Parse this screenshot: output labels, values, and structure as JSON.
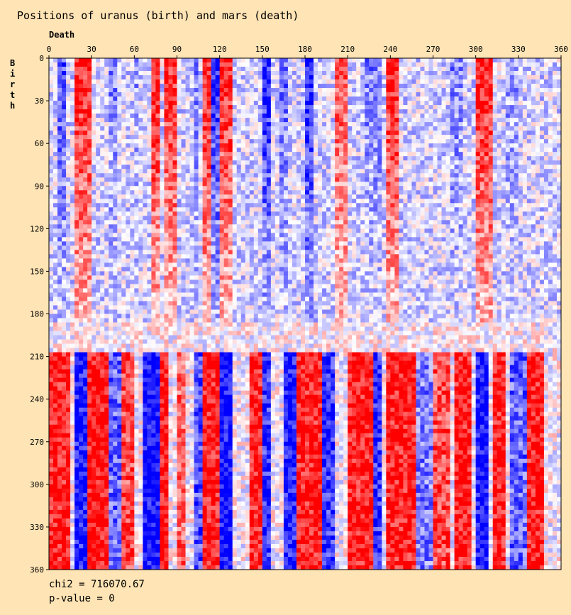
{
  "chart_data": {
    "type": "heatmap",
    "title": "Positions of uranus (birth) and mars (death)",
    "xlabel": "Death",
    "ylabel": "Birth",
    "x_range": [
      0,
      360
    ],
    "y_range": [
      0,
      360
    ],
    "x_ticks": [
      0,
      30,
      60,
      90,
      120,
      150,
      180,
      210,
      240,
      270,
      300,
      330,
      360
    ],
    "y_ticks": [
      0,
      30,
      60,
      90,
      120,
      150,
      180,
      210,
      240,
      270,
      300,
      330,
      360
    ],
    "color_scale": {
      "positive": "#ff0000",
      "negative": "#0000ff",
      "neutral": "#ffffff"
    },
    "regions": [
      {
        "birth_range": [
          0,
          186
        ],
        "note": "upper block",
        "bands": [
          {
            "death": [
              4,
              12
            ],
            "value": -0.7
          },
          {
            "death": [
              16,
              30
            ],
            "value": 0.9
          },
          {
            "death": [
              40,
              46
            ],
            "value": -0.5
          },
          {
            "death": [
              58,
              62
            ],
            "value": -0.4
          },
          {
            "death": [
              70,
              76
            ],
            "value": 0.95
          },
          {
            "death": [
              80,
              88
            ],
            "value": 0.85
          },
          {
            "death": [
              100,
              104
            ],
            "value": -0.5
          },
          {
            "death": [
              108,
              114
            ],
            "value": 0.9
          },
          {
            "death": [
              114,
              120
            ],
            "value": -0.9
          },
          {
            "death": [
              120,
              128
            ],
            "value": 0.9
          },
          {
            "death": [
              148,
              154
            ],
            "value": -0.9
          },
          {
            "death": [
              160,
              166
            ],
            "value": -0.6
          },
          {
            "death": [
              178,
              184
            ],
            "value": -0.95
          },
          {
            "death": [
              200,
              208
            ],
            "value": 0.7
          },
          {
            "death": [
              222,
              232
            ],
            "value": -0.5
          },
          {
            "death": [
              236,
              246
            ],
            "value": 0.9
          },
          {
            "death": [
              280,
              290
            ],
            "value": -0.5
          },
          {
            "death": [
              300,
              312
            ],
            "value": 0.95
          },
          {
            "death": [
              320,
              330
            ],
            "value": -0.4
          }
        ]
      },
      {
        "birth_range": [
          206,
          360
        ],
        "note": "lower block",
        "bands": [
          {
            "death": [
              0,
              14
            ],
            "value": 0.9
          },
          {
            "death": [
              16,
              26
            ],
            "value": -0.9
          },
          {
            "death": [
              26,
              40
            ],
            "value": 0.95
          },
          {
            "death": [
              40,
              50
            ],
            "value": -0.6
          },
          {
            "death": [
              50,
              58
            ],
            "value": 0.7
          },
          {
            "death": [
              64,
              76
            ],
            "value": -0.95
          },
          {
            "death": [
              76,
              84
            ],
            "value": 0.95
          },
          {
            "death": [
              90,
              96
            ],
            "value": 0.6
          },
          {
            "death": [
              100,
              108
            ],
            "value": -0.7
          },
          {
            "death": [
              108,
              120
            ],
            "value": 0.9
          },
          {
            "death": [
              118,
              128
            ],
            "value": -0.95
          },
          {
            "death": [
              140,
              148
            ],
            "value": 0.9
          },
          {
            "death": [
              148,
              154
            ],
            "value": -0.8
          },
          {
            "death": [
              164,
              172
            ],
            "value": -0.9
          },
          {
            "death": [
              172,
              190
            ],
            "value": 0.9
          },
          {
            "death": [
              190,
              200
            ],
            "value": -0.8
          },
          {
            "death": [
              208,
              226
            ],
            "value": 0.9
          },
          {
            "death": [
              226,
              234
            ],
            "value": -0.8
          },
          {
            "death": [
              236,
              256
            ],
            "value": 0.9
          },
          {
            "death": [
              258,
              268
            ],
            "value": -0.5
          },
          {
            "death": [
              270,
              280
            ],
            "value": 0.7
          },
          {
            "death": [
              284,
              296
            ],
            "value": 0.9
          },
          {
            "death": [
              298,
              308
            ],
            "value": -0.95
          },
          {
            "death": [
              310,
              320
            ],
            "value": 0.9
          },
          {
            "death": [
              324,
              334
            ],
            "value": -0.6
          },
          {
            "death": [
              336,
              346
            ],
            "value": 0.9
          }
        ]
      }
    ],
    "stats": {
      "chi2_label": "chi2 = 716070.67",
      "pvalue_label": "p-value = 0"
    }
  }
}
